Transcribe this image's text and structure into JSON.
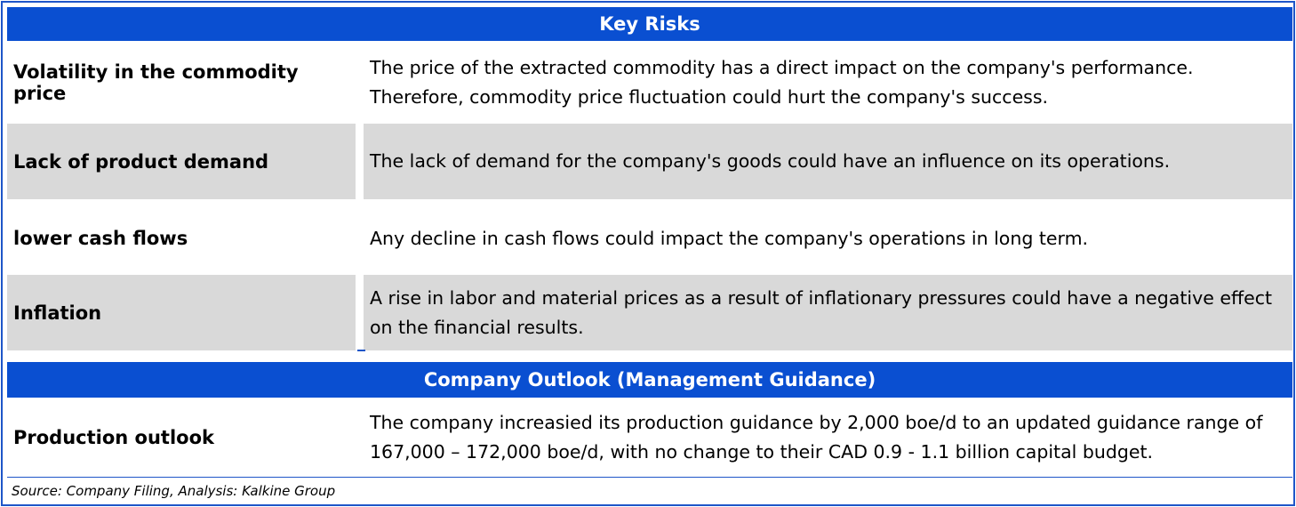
{
  "key_risks": {
    "title": "Key Risks",
    "rows": [
      {
        "label": "Volatility in the commodity price",
        "text": "The price of the extracted commodity has a direct impact on the company's performance. Therefore, commodity price fluctuation could hurt the company's success."
      },
      {
        "label": "Lack of product demand",
        "text": "The lack of demand for the company's goods could have an influence on its operations."
      },
      {
        "label": "lower cash flows",
        "text": "Any decline in cash flows could impact the company's operations in long term."
      },
      {
        "label": "Inflation",
        "text": "A rise in labor and material prices as a result of inflationary pressures could have a negative effect on the financial results."
      }
    ]
  },
  "outlook": {
    "title": "Company Outlook (Management Guidance)",
    "rows": [
      {
        "label": "Production outlook",
        "text": "The company increasied its production guidance by 2,000 boe/d to an updated guidance range of 167,000 – 172,000 boe/d, with no change to their CAD 0.9 - 1.1 billion capital budget."
      }
    ]
  },
  "source": "Source: Company Filing, Analysis: Kalkine Group",
  "colors": {
    "header_bg": "#0a4fd1",
    "shade": "#d9d9d9",
    "border": "#1e56c8"
  }
}
